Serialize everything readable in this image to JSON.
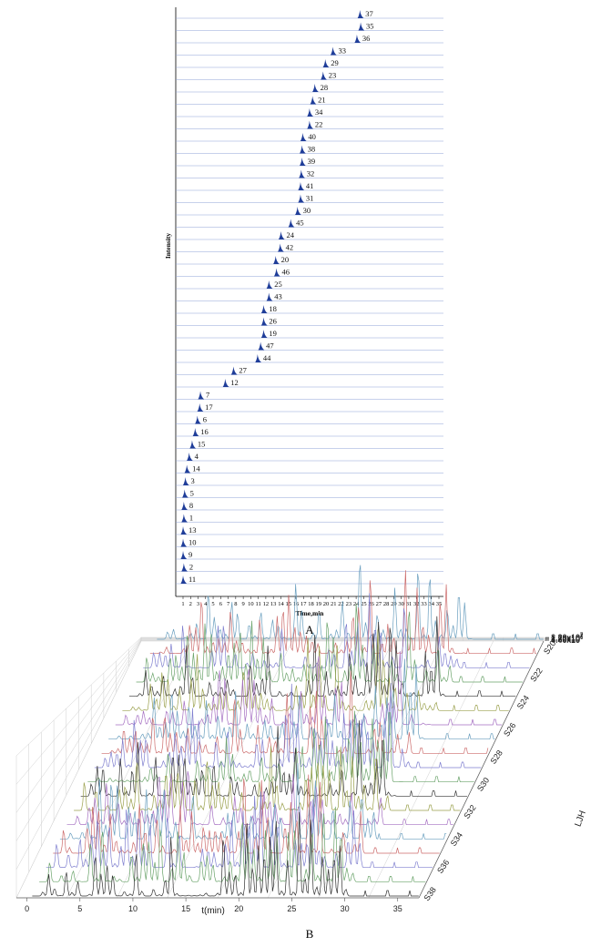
{
  "colors": {
    "peak": "#1f3d99",
    "baseline": "#8fa3d8",
    "grid": "#cfcfcf",
    "series": [
      "#333333",
      "#6aa36a",
      "#7f7fcf",
      "#cc6b6b",
      "#6a9fbf",
      "#a56fc2",
      "#9aa04c"
    ]
  },
  "chart_data": [
    {
      "panel": "A",
      "type": "line",
      "xlabel": "Time,min",
      "ylabel": "Intensity",
      "x_ticks": [
        1,
        2,
        3,
        4,
        5,
        6,
        7,
        8,
        9,
        10,
        11,
        12,
        13,
        14,
        15,
        16,
        17,
        18,
        19,
        20,
        21,
        22,
        23,
        24,
        25,
        26,
        27,
        28,
        29,
        30,
        31,
        32,
        33,
        34,
        35
      ],
      "xlim": [
        1,
        35
      ],
      "traces": [
        {
          "label": "37",
          "rt": 24.5
        },
        {
          "label": "35",
          "rt": 24.6
        },
        {
          "label": "36",
          "rt": 24.1
        },
        {
          "label": "33",
          "rt": 20.9
        },
        {
          "label": "29",
          "rt": 19.9
        },
        {
          "label": "23",
          "rt": 19.6
        },
        {
          "label": "28",
          "rt": 18.5
        },
        {
          "label": "21",
          "rt": 18.2
        },
        {
          "label": "34",
          "rt": 17.8
        },
        {
          "label": "22",
          "rt": 17.8
        },
        {
          "label": "40",
          "rt": 16.9
        },
        {
          "label": "38",
          "rt": 16.8
        },
        {
          "label": "39",
          "rt": 16.8
        },
        {
          "label": "32",
          "rt": 16.7
        },
        {
          "label": "41",
          "rt": 16.6
        },
        {
          "label": "31",
          "rt": 16.6
        },
        {
          "label": "30",
          "rt": 16.2
        },
        {
          "label": "45",
          "rt": 15.3
        },
        {
          "label": "24",
          "rt": 14.0
        },
        {
          "label": "42",
          "rt": 13.9
        },
        {
          "label": "20",
          "rt": 13.3
        },
        {
          "label": "46",
          "rt": 13.4
        },
        {
          "label": "25",
          "rt": 12.4
        },
        {
          "label": "43",
          "rt": 12.4
        },
        {
          "label": "18",
          "rt": 11.7
        },
        {
          "label": "26",
          "rt": 11.7
        },
        {
          "label": "19",
          "rt": 11.7
        },
        {
          "label": "47",
          "rt": 11.3
        },
        {
          "label": "44",
          "rt": 10.9
        },
        {
          "label": "27",
          "rt": 7.7
        },
        {
          "label": "12",
          "rt": 6.6
        },
        {
          "label": "7",
          "rt": 3.3
        },
        {
          "label": "17",
          "rt": 3.2
        },
        {
          "label": "6",
          "rt": 2.9
        },
        {
          "label": "16",
          "rt": 2.6
        },
        {
          "label": "15",
          "rt": 2.2
        },
        {
          "label": "4",
          "rt": 1.8
        },
        {
          "label": "14",
          "rt": 1.5
        },
        {
          "label": "3",
          "rt": 1.3
        },
        {
          "label": "5",
          "rt": 1.2
        },
        {
          "label": "8",
          "rt": 1.1
        },
        {
          "label": "1",
          "rt": 1.1
        },
        {
          "label": "13",
          "rt": 1.0
        },
        {
          "label": "10",
          "rt": 1.0
        },
        {
          "label": "9",
          "rt": 1.0
        },
        {
          "label": "2",
          "rt": 1.1
        },
        {
          "label": "11",
          "rt": 1.0
        }
      ]
    },
    {
      "panel": "B",
      "type": "line",
      "xlabel": "t(min)",
      "ylabel": "",
      "zlabel": "LJH",
      "x_ticks": [
        0,
        5,
        10,
        15,
        20,
        25,
        30,
        35
      ],
      "xlim": [
        -1,
        37
      ],
      "y_ticks": [
        "4.40x10",
        "8.80x10",
        "1.32x10",
        "1.76x10",
        "2.20x10"
      ],
      "y_tick_exponents": [
        "6",
        "6",
        "7",
        "7",
        "7"
      ],
      "ylim": [
        0,
        22000000
      ],
      "z_ticks": [
        "S20",
        "S22",
        "S24",
        "S26",
        "S28",
        "S30",
        "S32",
        "S34",
        "S36",
        "S38"
      ],
      "series_count": 19
    }
  ],
  "panel_labels": {
    "a": "A",
    "b": "B"
  }
}
